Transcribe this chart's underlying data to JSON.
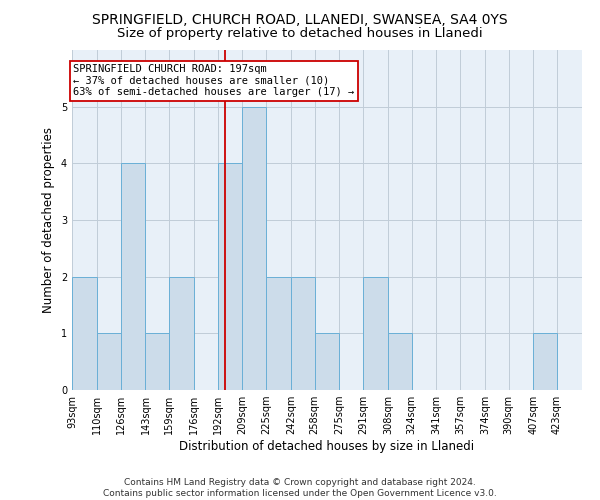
{
  "title": "SPRINGFIELD, CHURCH ROAD, LLANEDI, SWANSEA, SA4 0YS",
  "subtitle": "Size of property relative to detached houses in Llanedi",
  "xlabel": "Distribution of detached houses by size in Llanedi",
  "ylabel": "Number of detached properties",
  "footer_line1": "Contains HM Land Registry data © Crown copyright and database right 2024.",
  "footer_line2": "Contains public sector information licensed under the Open Government Licence v3.0.",
  "bin_labels": [
    "93sqm",
    "110sqm",
    "126sqm",
    "143sqm",
    "159sqm",
    "176sqm",
    "192sqm",
    "209sqm",
    "225sqm",
    "242sqm",
    "258sqm",
    "275sqm",
    "291sqm",
    "308sqm",
    "324sqm",
    "341sqm",
    "357sqm",
    "374sqm",
    "390sqm",
    "407sqm",
    "423sqm"
  ],
  "bin_edges": [
    93,
    110,
    126,
    143,
    159,
    176,
    192,
    209,
    225,
    242,
    258,
    275,
    291,
    308,
    324,
    341,
    357,
    374,
    390,
    407,
    423,
    440
  ],
  "counts": [
    2,
    1,
    4,
    1,
    2,
    0,
    4,
    5,
    2,
    2,
    1,
    0,
    2,
    1,
    0,
    0,
    0,
    0,
    0,
    1,
    0
  ],
  "bar_color": "#ccdcea",
  "bar_edge_color": "#6aafd6",
  "red_line_x": 197,
  "annotation_title": "SPRINGFIELD CHURCH ROAD: 197sqm",
  "annotation_line1": "← 37% of detached houses are smaller (10)",
  "annotation_line2": "63% of semi-detached houses are larger (17) →",
  "annotation_box_color": "#ffffff",
  "annotation_box_edge": "#cc0000",
  "red_line_color": "#cc0000",
  "ylim": [
    0,
    6
  ],
  "yticks": [
    0,
    1,
    2,
    3,
    4,
    5,
    6
  ],
  "plot_bg_color": "#e8f0f8",
  "background_color": "#ffffff",
  "grid_color": "#c0ccd8",
  "title_fontsize": 10,
  "subtitle_fontsize": 9.5,
  "axis_label_fontsize": 8.5,
  "tick_fontsize": 7,
  "annotation_fontsize": 7.5,
  "footer_fontsize": 6.5
}
